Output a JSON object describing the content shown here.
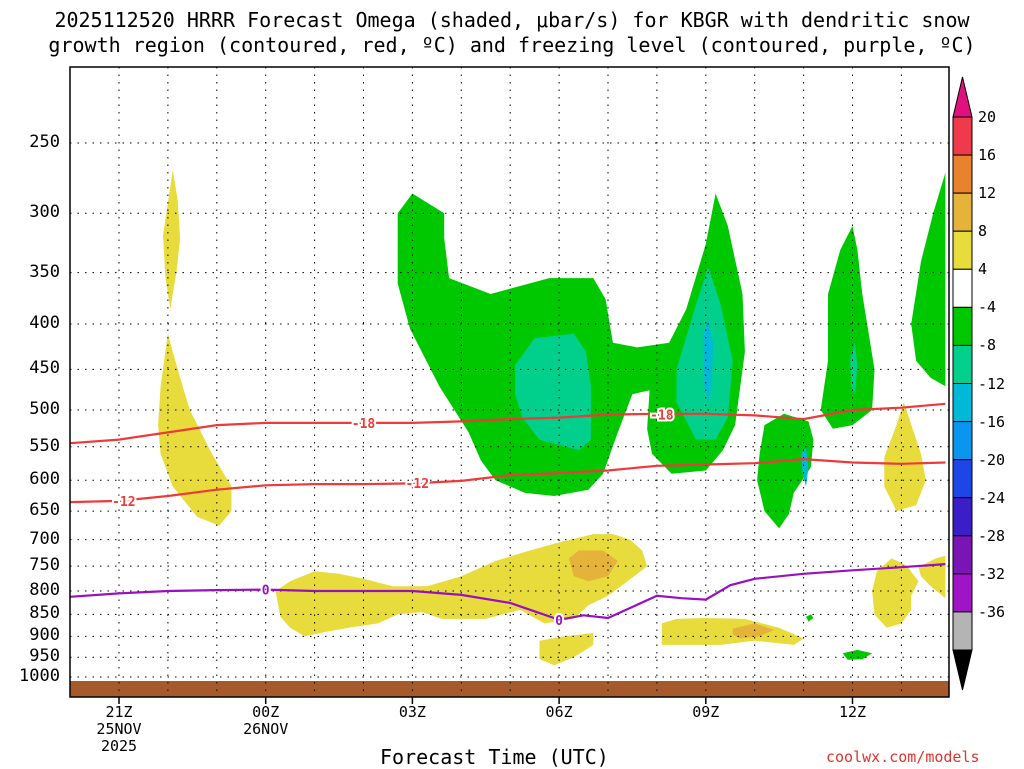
{
  "title_line1": "2025112520 HRRR Forecast Omega (shaded, μbar/s) for KBGR with dendritic snow",
  "title_line2": "growth region (contoured, red, ºC) and freezing level (contoured, purple, ºC)",
  "xaxis_title": "Forecast Time (UTC)",
  "credit": "coolwx.com/models",
  "chart_data": {
    "type": "heatmap",
    "y_axis": {
      "label": "",
      "scale": "log-pressure",
      "inverted": true,
      "ticks": [
        250,
        300,
        350,
        400,
        450,
        500,
        550,
        600,
        650,
        700,
        750,
        800,
        850,
        900,
        950,
        1000
      ],
      "range": [
        1030,
        200
      ],
      "grid": true
    },
    "x_axis": {
      "label": "Forecast Time (UTC)",
      "range_hours": [
        -1,
        16.9
      ],
      "ticks": [
        {
          "hour": 0,
          "label": "21Z\n25NOV\n2025"
        },
        {
          "hour": 3,
          "label": "00Z\n26NOV"
        },
        {
          "hour": 6,
          "label": "03Z"
        },
        {
          "hour": 9,
          "label": "06Z"
        },
        {
          "hour": 12,
          "label": "09Z"
        },
        {
          "hour": 15,
          "label": "12Z"
        }
      ],
      "grid": true
    },
    "colorbar": {
      "labels": [
        "20",
        "16",
        "12",
        "8",
        "4",
        "-4",
        "-8",
        "-12",
        "-16",
        "-20",
        "-24",
        "-28",
        "-32",
        "-36"
      ],
      "colors": [
        "#ee3a4a",
        "#e8822c",
        "#e5b33a",
        "#e8dc3c",
        "#ffffff",
        "#00c800",
        "#00d08c",
        "#00b8d8",
        "#0a96ee",
        "#1e46e6",
        "#3c1ec8",
        "#7a14b4",
        "#a014c8",
        "#b4b4b4"
      ],
      "top_color": "#e0117f",
      "bottom_color": "#000000"
    },
    "contours": [
      {
        "name": "dendritic snow growth region",
        "color": "#ee3a3a",
        "values": [
          "-18",
          "-12"
        ],
        "series": [
          {
            "label": "-18",
            "x": [
              -1,
              0,
              1,
              2,
              3,
              4,
              5,
              6,
              7,
              8,
              9,
              10,
              11,
              12,
              13,
              14,
              15,
              16,
              16.9
            ],
            "y": [
              545,
              540,
              530,
              520,
              517,
              517,
              517,
              517,
              515,
              512,
              510,
              506,
              505,
              505,
              507,
              512,
              500,
              497,
              492
            ]
          },
          {
            "label": "-12",
            "x": [
              -1,
              0,
              1,
              2,
              3,
              4,
              5,
              6,
              7,
              8,
              9,
              10,
              11,
              12,
              13,
              14,
              15,
              16,
              16.9
            ],
            "y": [
              635,
              633,
              625,
              615,
              608,
              606,
              606,
              605,
              601,
              592,
              589,
              585,
              578,
              576,
              574,
              568,
              573,
              575,
              573
            ]
          }
        ]
      },
      {
        "name": "freezing level",
        "color": "#9910c0",
        "values": [
          "0"
        ],
        "series": [
          {
            "label": "0",
            "x": [
              -1,
              0,
              1,
              2,
              3,
              4,
              5,
              6,
              7,
              8,
              9,
              9.5,
              10,
              11,
              11.5,
              12,
              12.5,
              13,
              14,
              15,
              16,
              16.9
            ],
            "y": [
              812,
              805,
              800,
              798,
              797,
              800,
              800,
              800,
              808,
              825,
              862,
              852,
              858,
              810,
              815,
              818,
              788,
              775,
              765,
              758,
              752,
              746
            ]
          }
        ]
      }
    ],
    "surface": {
      "color": "#a65a2c",
      "label": "ground"
    }
  }
}
